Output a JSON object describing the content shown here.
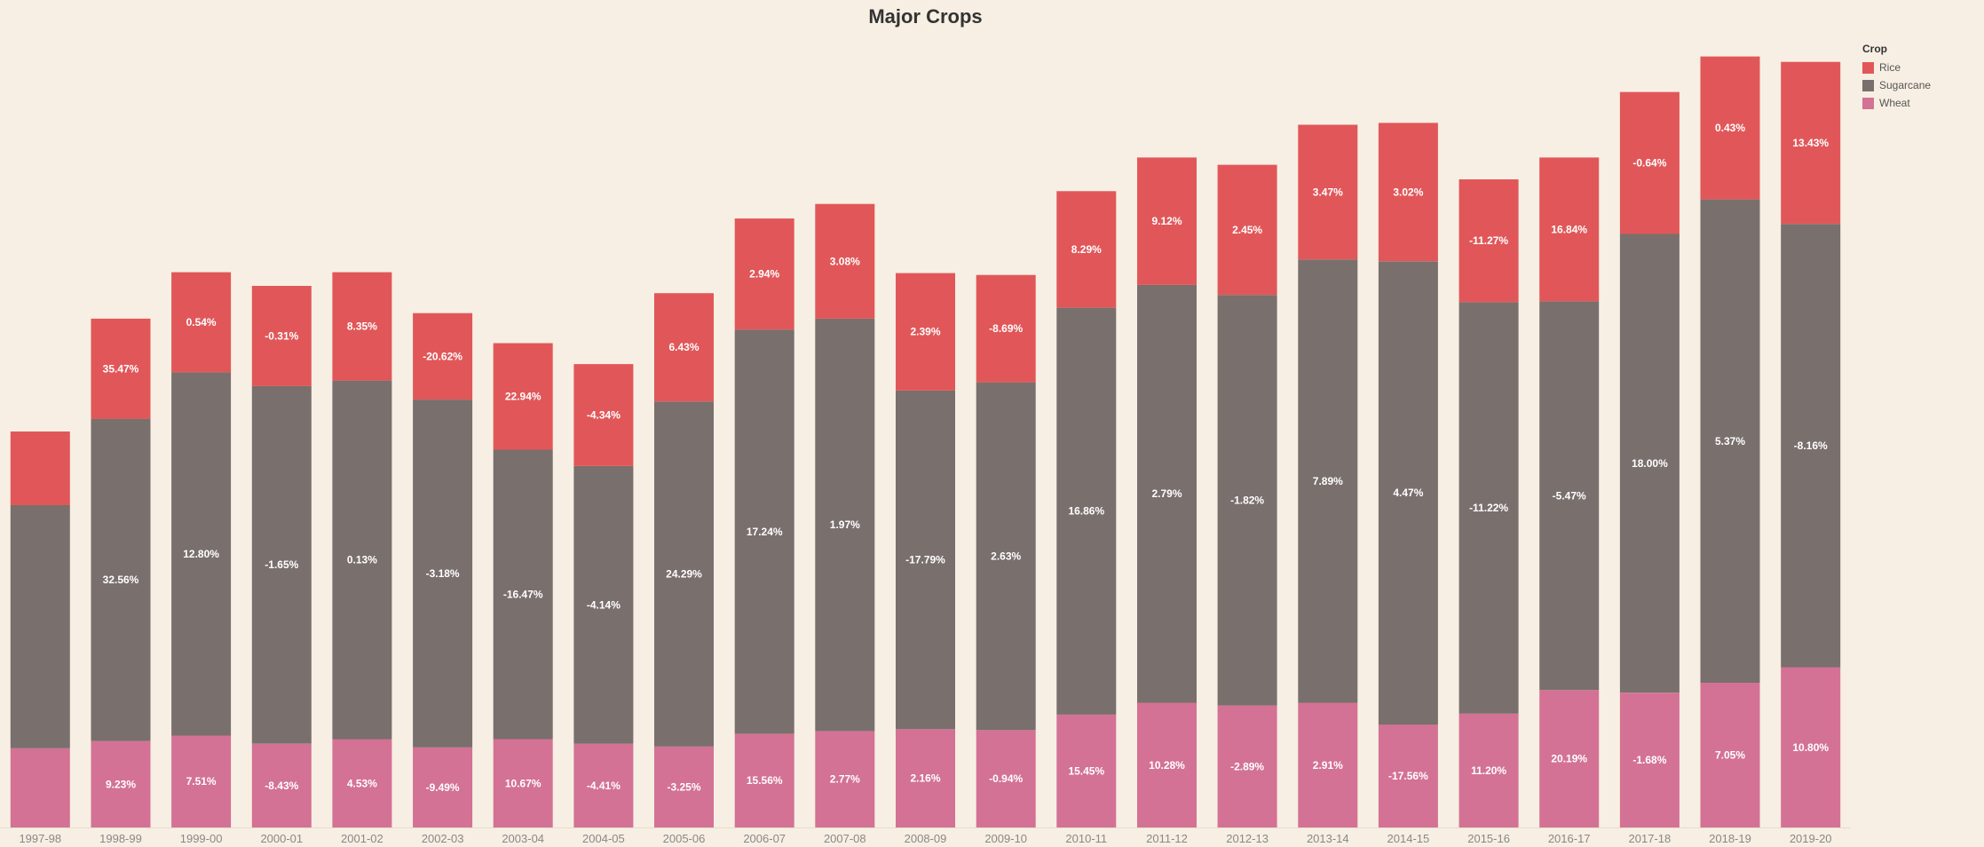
{
  "chart_data": {
    "type": "bar",
    "stacked": true,
    "title": "Major Crops",
    "xlabel": "",
    "ylabel": "",
    "categories": [
      "1997-98",
      "1998-99",
      "1999-00",
      "2000-01",
      "2001-02",
      "2002-03",
      "2003-04",
      "2004-05",
      "2005-06",
      "2006-07",
      "2007-08",
      "2008-09",
      "2009-10",
      "2010-11",
      "2011-12",
      "2012-13",
      "2013-14",
      "2014-15",
      "2015-16",
      "2016-17",
      "2017-18",
      "2018-19",
      "2019-20"
    ],
    "legend": {
      "title": "Crop",
      "position": "top-right"
    },
    "series": [
      {
        "name": "Wheat",
        "color": "#d37294",
        "values": [
          87,
          95,
          101,
          92,
          97,
          88,
          97,
          92,
          89,
          103,
          106,
          108,
          107,
          124,
          137,
          134,
          137,
          113,
          125,
          151,
          148,
          159,
          176
        ],
        "labels": [
          "",
          "9.23%",
          "7.51%",
          "-8.43%",
          "4.53%",
          "-9.49%",
          "10.67%",
          "-4.41%",
          "-3.25%",
          "15.56%",
          "2.77%",
          "2.16%",
          "-0.94%",
          "15.45%",
          "10.28%",
          "-2.89%",
          "2.91%",
          "-17.56%",
          "11.20%",
          "20.19%",
          "-1.68%",
          "7.05%",
          "10.80%"
        ]
      },
      {
        "name": "Sugarcane",
        "color": "#796f6d",
        "values": [
          267,
          354,
          399,
          393,
          394,
          382,
          318,
          305,
          379,
          444,
          453,
          372,
          382,
          447,
          459,
          451,
          487,
          509,
          452,
          427,
          504,
          531,
          487
        ],
        "labels": [
          "",
          "32.56%",
          "12.80%",
          "-1.65%",
          "0.13%",
          "-3.18%",
          "-16.47%",
          "-4.14%",
          "24.29%",
          "17.24%",
          "1.97%",
          "-17.79%",
          "2.63%",
          "16.86%",
          "2.79%",
          "-1.82%",
          "7.89%",
          "4.47%",
          "-11.22%",
          "-5.47%",
          "18.00%",
          "5.37%",
          "-8.16%"
        ]
      },
      {
        "name": "Rice",
        "color": "#e15759",
        "values": [
          81,
          110,
          110,
          110,
          119,
          95,
          117,
          112,
          119,
          122,
          126,
          129,
          118,
          128,
          140,
          143,
          148,
          152,
          135,
          158,
          156,
          157,
          178
        ],
        "labels": [
          "",
          "35.47%",
          "0.54%",
          "-0.31%",
          "8.35%",
          "-20.62%",
          "22.94%",
          "-4.34%",
          "6.43%",
          "2.94%",
          "3.08%",
          "2.39%",
          "-8.69%",
          "8.29%",
          "9.12%",
          "2.45%",
          "3.47%",
          "3.02%",
          "-11.27%",
          "16.84%",
          "-0.64%",
          "0.43%",
          "13.43%"
        ]
      }
    ],
    "ylim": [
      0,
      870
    ],
    "grid": false
  }
}
